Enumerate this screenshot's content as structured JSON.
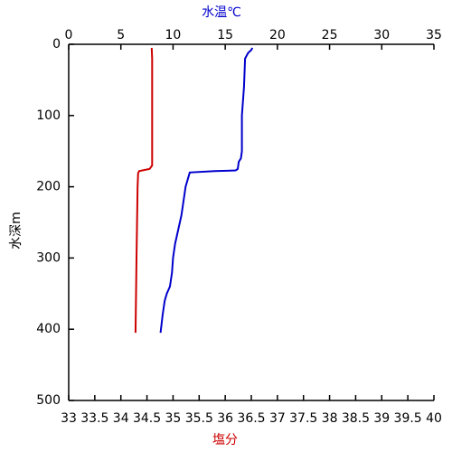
{
  "chart_data": {
    "type": "line",
    "x_label": "塩分",
    "x2_label": "水温℃",
    "y_label": "水深m",
    "xlim": [
      33,
      40
    ],
    "xticks": [
      33,
      33.5,
      34,
      34.5,
      35,
      35.5,
      36,
      36.5,
      37,
      37.5,
      38,
      38.5,
      39,
      39.5,
      40
    ],
    "x2lim": [
      0,
      35
    ],
    "x2ticks": [
      0,
      5,
      10,
      15,
      20,
      25,
      30,
      35
    ],
    "ylim": [
      0,
      500
    ],
    "yticks": [
      0,
      100,
      200,
      300,
      400,
      500
    ],
    "y_inverted": true,
    "series": [
      {
        "color": "#cc0000",
        "axis": "x",
        "depth": [
          5,
          20,
          100,
          150,
          170,
          175,
          178,
          181,
          200,
          250,
          300,
          350,
          405
        ],
        "values": [
          34.59,
          34.6,
          34.6,
          34.6,
          34.6,
          34.55,
          34.35,
          34.33,
          34.32,
          34.31,
          34.3,
          34.29,
          34.28
        ]
      },
      {
        "color": "#0000cc",
        "axis": "x2",
        "depth": [
          5,
          8,
          12,
          20,
          60,
          100,
          150,
          160,
          165,
          175,
          177,
          178,
          180,
          190,
          200,
          220,
          240,
          260,
          280,
          300,
          320,
          340,
          350,
          360,
          380,
          405
        ],
        "values": [
          17.6,
          17.5,
          17.2,
          16.9,
          16.8,
          16.6,
          16.6,
          16.5,
          16.3,
          16.2,
          16.0,
          14,
          11.6,
          11.4,
          11.2,
          11.0,
          10.8,
          10.5,
          10.2,
          10.0,
          9.9,
          9.7,
          9.4,
          9.2,
          9.0,
          8.8
        ]
      }
    ]
  }
}
